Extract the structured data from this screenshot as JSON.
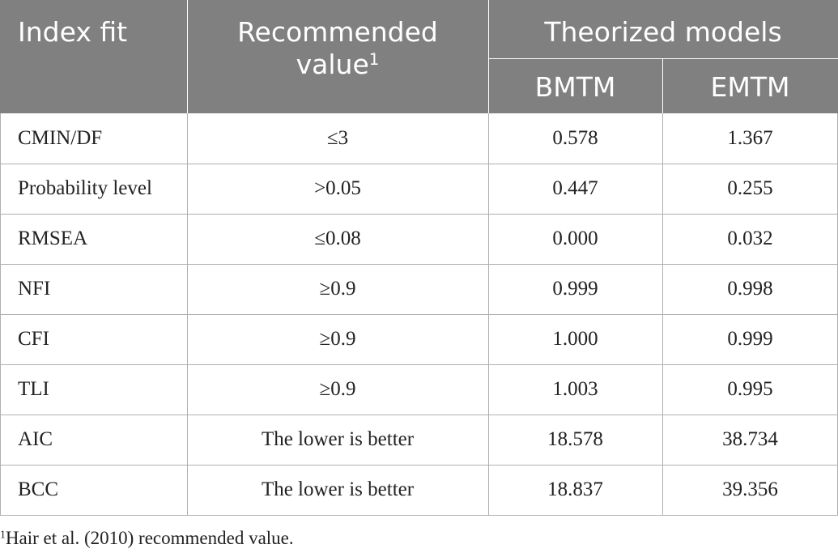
{
  "header": {
    "index_fit": "Index fit",
    "recommended": "Recommended value",
    "recommended_note": "1",
    "theorized": "Theorized models",
    "models": [
      "BMTM",
      "EMTM"
    ]
  },
  "rows": [
    [
      "CMIN/DF",
      "≤3",
      "0.578",
      "1.367"
    ],
    [
      "Probability level",
      ">0.05",
      "0.447",
      "0.255"
    ],
    [
      "RMSEA",
      "≤0.08",
      "0.000",
      "0.032"
    ],
    [
      "NFI",
      "≥0.9",
      "0.999",
      "0.998"
    ],
    [
      "CFI",
      "≥0.9",
      "1.000",
      "0.999"
    ],
    [
      "TLI",
      "≥0.9",
      "1.003",
      "0.995"
    ],
    [
      "AIC",
      "The lower is better",
      "18.578",
      "38.734"
    ],
    [
      "BCC",
      "The lower is better",
      "18.837",
      "39.356"
    ]
  ],
  "footnote": {
    "marker": "1",
    "text": "Hair et al. (2010) recommended value."
  }
}
